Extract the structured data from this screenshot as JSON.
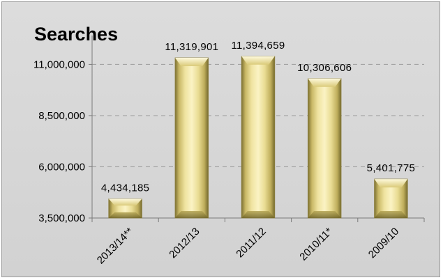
{
  "chart_data": {
    "type": "bar",
    "title": "Searches",
    "xlabel": "",
    "ylabel": "",
    "categories": [
      "2013/14**",
      "2012/13",
      "2011/12",
      "2010/11*",
      "2009/10"
    ],
    "values": [
      4434185,
      11319901,
      11394659,
      10306606,
      5401775
    ],
    "data_labels": [
      "4,434,185",
      "11,319,901",
      "11,394,659",
      "10,306,606",
      "5,401,775"
    ],
    "ylim": [
      3500000,
      12000000
    ],
    "yticks": [
      3500000,
      6000000,
      8500000,
      11000000
    ],
    "ytick_labels": [
      "3,500,000",
      "6,000,000",
      "8,500,000",
      "11,000,000"
    ],
    "grid": true,
    "grid_style": "dashed",
    "legend": "none",
    "bar_color": "#e3d58c",
    "bar_edge_color": "#8a7d3c",
    "background_color": "#d6d6d6"
  }
}
